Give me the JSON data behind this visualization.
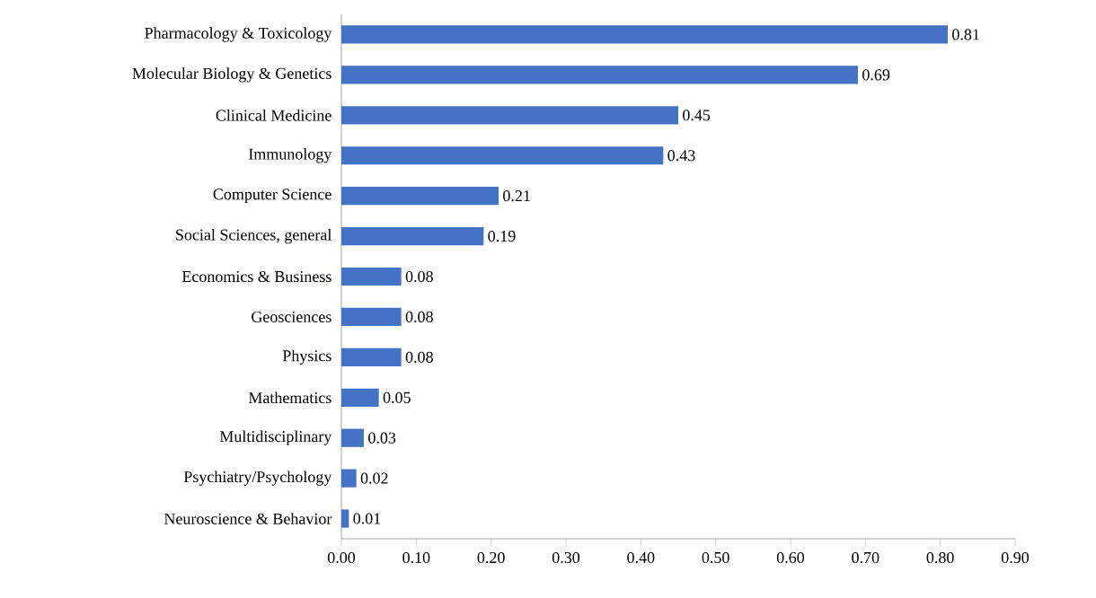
{
  "chart_data": {
    "type": "bar",
    "orientation": "horizontal",
    "color": "#4472c4",
    "data_labels": true,
    "categories": [
      "Pharmacology & Toxicology",
      "Molecular Biology & Genetics",
      "Clinical Medicine",
      "Immunology",
      "Computer Science",
      "Social Sciences, general",
      "Economics & Business",
      "Geosciences",
      "Physics",
      "Mathematics",
      "Multidisciplinary",
      "Psychiatry/Psychology",
      "Neuroscience & Behavior"
    ],
    "values": [
      0.81,
      0.69,
      0.45,
      0.43,
      0.21,
      0.19,
      0.08,
      0.08,
      0.08,
      0.05,
      0.03,
      0.02,
      0.01
    ],
    "xlim": [
      0,
      0.9
    ],
    "xticks": [
      {
        "value": 0,
        "label": "0.00"
      },
      {
        "value": 0.1,
        "label": "0.10"
      },
      {
        "value": 0.2,
        "label": "0.20"
      },
      {
        "value": 0.3,
        "label": "0.30"
      },
      {
        "value": 0.4,
        "label": "0.40"
      },
      {
        "value": 0.5,
        "label": "0.50"
      },
      {
        "value": 0.6,
        "label": "0.60"
      },
      {
        "value": 0.7,
        "label": "0.70"
      },
      {
        "value": 0.8,
        "label": "0.80"
      },
      {
        "value": 0.9,
        "label": "0.90"
      }
    ]
  }
}
